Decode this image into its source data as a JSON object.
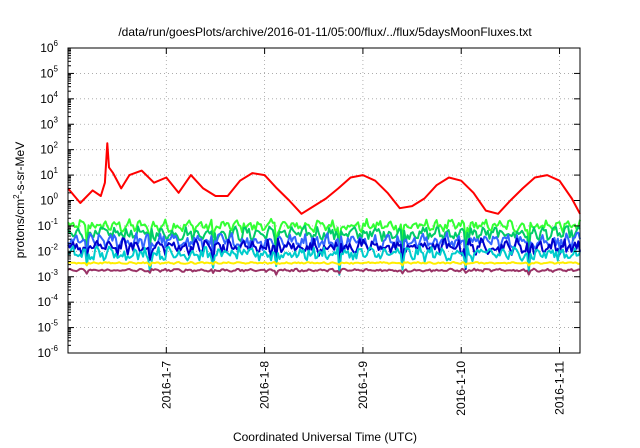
{
  "chart_data": {
    "type": "line",
    "title": "/data/run/goesPlots/archive/2016-01-11/05:00/flux/../flux/5daysMoonFluxes.txt",
    "xlabel": "Coordinated Universal Time (UTC)",
    "ylabel": {
      "prefix": "protons/cm",
      "superscript": "2",
      "suffix": "-s-sr-MeV"
    },
    "y_scale": "log",
    "ylim": [
      1e-06,
      1000000.0
    ],
    "y_tick_exponents": [
      -6,
      -5,
      -4,
      -3,
      -2,
      -1,
      0,
      1,
      2,
      3,
      4,
      5,
      6
    ],
    "y_tick_base": "10",
    "x_ticks": [
      "2016-1-7",
      "2016-1-8",
      "2016-1-9",
      "2016-1-10",
      "2016-1-11"
    ],
    "xlim": [
      "2016-01-06 00:00",
      "2016-01-11 05:00"
    ],
    "grid": true,
    "series": [
      {
        "color": "#ff0000",
        "x": [
          "2016-01-06 00:00",
          "2016-01-06 03:00",
          "2016-01-06 06:00",
          "2016-01-06 08:00",
          "2016-01-06 09:00",
          "2016-01-06 09:36",
          "2016-01-06 10:00",
          "2016-01-06 11:00",
          "2016-01-06 13:00",
          "2016-01-06 15:00",
          "2016-01-06 18:00",
          "2016-01-06 21:00",
          "2016-01-07 00:00",
          "2016-01-07 03:00",
          "2016-01-07 06:00",
          "2016-01-07 09:00",
          "2016-01-07 12:00",
          "2016-01-07 15:00",
          "2016-01-07 18:00",
          "2016-01-07 21:00",
          "2016-01-08 00:00",
          "2016-01-08 03:00",
          "2016-01-08 06:00",
          "2016-01-08 09:00",
          "2016-01-08 12:00",
          "2016-01-08 15:00",
          "2016-01-08 18:00",
          "2016-01-08 21:00",
          "2016-01-09 00:00",
          "2016-01-09 03:00",
          "2016-01-09 06:00",
          "2016-01-09 09:00",
          "2016-01-09 12:00",
          "2016-01-09 15:00",
          "2016-01-09 18:00",
          "2016-01-09 21:00",
          "2016-01-10 00:00",
          "2016-01-10 03:00",
          "2016-01-10 06:00",
          "2016-01-10 09:00",
          "2016-01-10 12:00",
          "2016-01-10 15:00",
          "2016-01-10 18:00",
          "2016-01-10 21:00",
          "2016-01-11 00:00",
          "2016-01-11 03:00",
          "2016-01-11 05:00"
        ],
        "y": [
          3,
          0.8,
          2.5,
          1.5,
          5,
          180,
          20,
          12,
          3,
          10,
          15,
          5,
          8,
          2,
          10,
          3,
          1.5,
          1.5,
          6,
          12,
          10,
          3,
          1,
          0.3,
          0.6,
          1.2,
          3,
          8,
          10,
          6,
          2,
          0.5,
          0.6,
          1.2,
          4,
          8,
          6,
          2,
          0.4,
          0.3,
          1,
          3,
          8,
          10,
          6,
          1.2,
          0.3
        ]
      },
      {
        "color": "#33ff33",
        "level": 0.1,
        "amplitude": 0.35
      },
      {
        "color": "#00cc66",
        "level": 0.05,
        "amplitude": 0.4
      },
      {
        "color": "#3366ff",
        "level": 0.025,
        "amplitude": 0.45
      },
      {
        "color": "#0000cc",
        "level": 0.015,
        "amplitude": 0.45
      },
      {
        "color": "#00cccc",
        "level": 0.008,
        "amplitude": 0.4
      },
      {
        "color": "#ffee00",
        "level": 0.0035,
        "amplitude": 0.05
      },
      {
        "color": "#993366",
        "level": 0.0018,
        "amplitude": 0.08
      }
    ]
  }
}
